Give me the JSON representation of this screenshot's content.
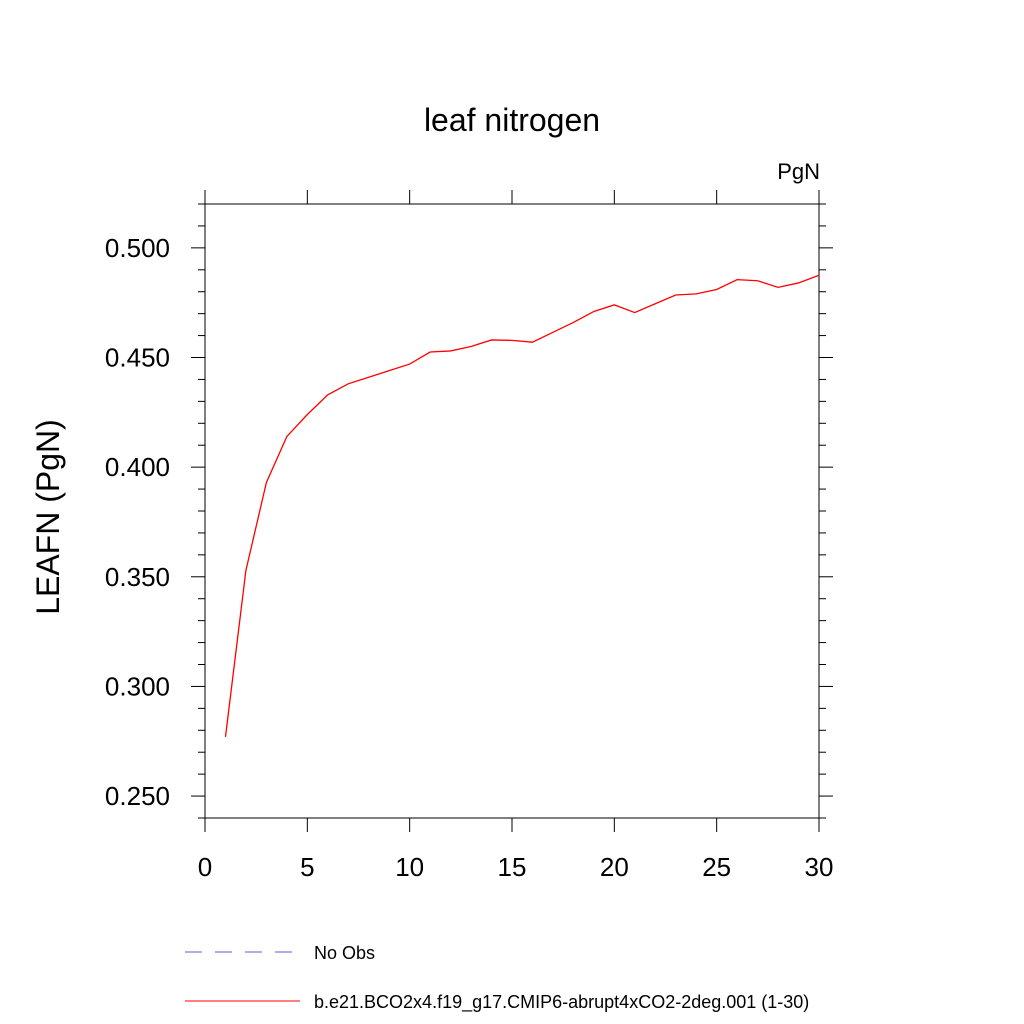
{
  "chart_data": {
    "type": "line",
    "title": "leaf nitrogen",
    "units": "PgN",
    "ylabel": "LEAFN  (PgN)",
    "xlabel": "",
    "xlim": [
      0,
      30
    ],
    "ylim": [
      0.24,
      0.52
    ],
    "xticks": [
      0,
      5,
      10,
      15,
      20,
      25,
      30
    ],
    "xtick_labels": [
      "0",
      "5",
      "10",
      "15",
      "20",
      "25",
      "30"
    ],
    "yticks": [
      0.25,
      0.3,
      0.35,
      0.4,
      0.45,
      0.5
    ],
    "ytick_labels": [
      "0.250",
      "0.300",
      "0.350",
      "0.400",
      "0.450",
      "0.500"
    ],
    "grid": false,
    "legend_position": "bottom",
    "series": [
      {
        "name": "No Obs",
        "color": "#6a5acd",
        "style": "dashed",
        "x": [],
        "values": []
      },
      {
        "name": "b.e21.BCO2x4.f19_g17.CMIP6-abrupt4xCO2-2deg.001 (1-30)",
        "color": "#ff0000",
        "style": "solid",
        "x": [
          1,
          2,
          3,
          4,
          5,
          6,
          7,
          8,
          9,
          10,
          11,
          12,
          13,
          14,
          15,
          16,
          17,
          18,
          19,
          20,
          21,
          22,
          23,
          24,
          25,
          26,
          27,
          28,
          29,
          30
        ],
        "values": [
          0.277,
          0.353,
          0.393,
          0.414,
          0.424,
          0.433,
          0.438,
          0.441,
          0.444,
          0.447,
          0.4525,
          0.453,
          0.455,
          0.458,
          0.4578,
          0.457,
          0.4615,
          0.466,
          0.471,
          0.474,
          0.4705,
          0.4745,
          0.4785,
          0.479,
          0.481,
          0.4855,
          0.485,
          0.482,
          0.484,
          0.4875
        ]
      }
    ]
  }
}
